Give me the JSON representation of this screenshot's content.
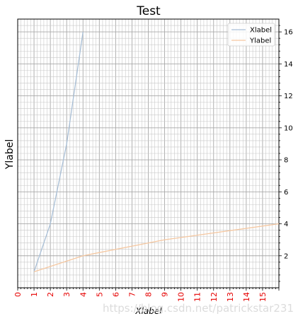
{
  "chart_data": {
    "type": "line",
    "title": "Test",
    "xlabel": "Xlabel",
    "ylabel": "Ylabel",
    "xlim": [
      0,
      16
    ],
    "ylim": [
      0,
      16.8
    ],
    "x_ticks": [
      0,
      1,
      2,
      3,
      4,
      5,
      6,
      7,
      8,
      9,
      10,
      11,
      12,
      13,
      14,
      15
    ],
    "y_ticks": [
      2,
      4,
      6,
      8,
      10,
      12,
      14,
      16
    ],
    "x_tick_color": "#e60000",
    "y_axis_position": "right",
    "grid": true,
    "minor_grid": true,
    "legend": "top-right",
    "series": [
      {
        "name": "Xlabel",
        "color": "#a9bfd6",
        "x": [
          1,
          2,
          3,
          4
        ],
        "y": [
          1,
          4,
          9,
          16
        ]
      },
      {
        "name": "Ylabel",
        "color": "#f5c7a0",
        "x": [
          1,
          4,
          9,
          16
        ],
        "y": [
          1,
          2,
          3,
          4
        ]
      }
    ]
  },
  "watermark": "https://blog.csdn.net/patrickstar231"
}
